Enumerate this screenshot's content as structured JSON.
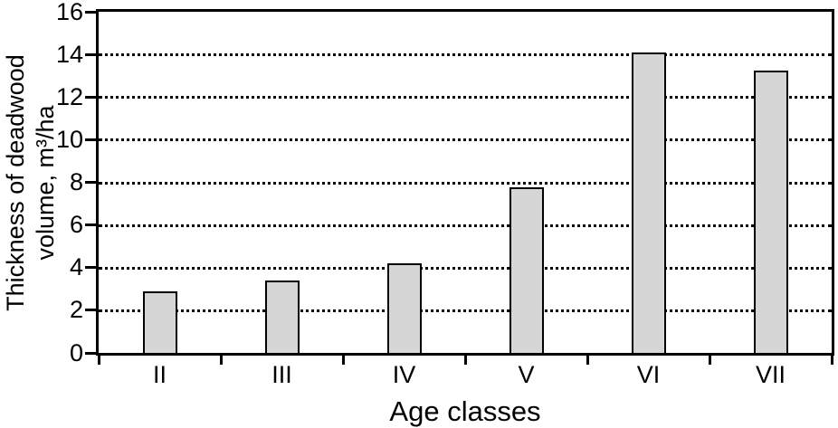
{
  "chart_data": {
    "type": "bar",
    "title": "",
    "categories": [
      "II",
      "III",
      "IV",
      "V",
      "VI",
      "VII"
    ],
    "values": [
      2.9,
      3.4,
      4.2,
      7.75,
      14.1,
      13.25
    ],
    "xlabel": "Age classes",
    "ylabel": "Thickness of deadwood volume, m³/ha",
    "ylabel_lines": [
      "Thickness of deadwood",
      "volume, m³/ha"
    ],
    "ylim": [
      0,
      16
    ],
    "yticks": [
      0,
      2,
      4,
      6,
      8,
      10,
      12,
      14,
      16
    ],
    "gridlines": {
      "axis": "y",
      "style": "dotted",
      "at": [
        2,
        4,
        6,
        8,
        10,
        12,
        14
      ]
    },
    "legend": null,
    "colors": {
      "bar_fill": "#d6d6d6",
      "bar_border": "#000000",
      "axis": "#000000",
      "text": "#000000",
      "background": "#ffffff"
    }
  }
}
